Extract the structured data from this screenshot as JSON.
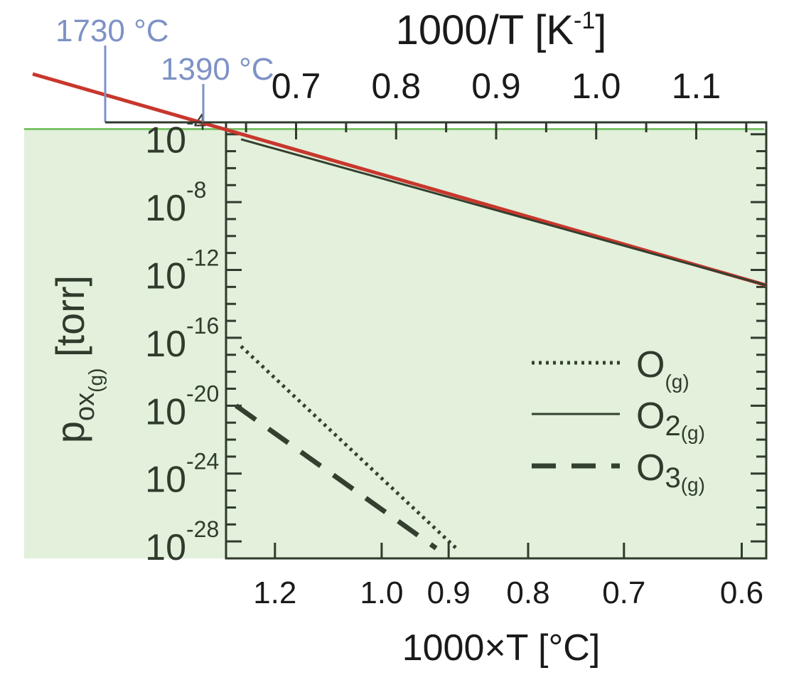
{
  "colors": {
    "axis": "#2f3b2c",
    "text": "#1a1a1a",
    "fill": "#e2f0dc",
    "fill_line": "#7cc36a",
    "o2_curve": "#c8372d",
    "o2_line": "#33402f",
    "marker": "#7e92c6"
  },
  "chart_data": {
    "type": "line",
    "top_axis": {
      "label_main": "1000/T [K",
      "label_sup": "-1",
      "label_close": "]",
      "ticks": [
        "0.7",
        "0.8",
        "0.9",
        "1.0",
        "1.1"
      ],
      "tick_values": [
        0.7,
        0.8,
        0.9,
        1.0,
        1.1
      ],
      "range": [
        0.63,
        1.17
      ]
    },
    "bottom_axis": {
      "label": "1000×T [°C]",
      "ticks": [
        "1.2",
        "1.0",
        "0.9",
        "0.8",
        "0.7",
        "0.6"
      ],
      "tick_values": [
        1.2,
        1.0,
        0.9,
        0.8,
        0.7,
        0.6
      ]
    },
    "y_axis": {
      "label_p": "p",
      "label_ox": "ox",
      "label_g": "(g)",
      "label_unit": " [torr]",
      "scale": "log",
      "range_exp": [
        -29,
        -3.3
      ],
      "ticks": [
        {
          "base": "10",
          "exp": "-4",
          "value": -4
        },
        {
          "base": "10",
          "exp": "-8",
          "value": -8
        },
        {
          "base": "10",
          "exp": "-12",
          "value": -12
        },
        {
          "base": "10",
          "exp": "-16",
          "value": -16
        },
        {
          "base": "10",
          "exp": "-20",
          "value": -20
        },
        {
          "base": "10",
          "exp": "-24",
          "value": -24
        },
        {
          "base": "10",
          "exp": "-28",
          "value": -28
        }
      ]
    },
    "series": [
      {
        "name": "O",
        "sub": "(g)",
        "style": "dotted",
        "x": [
          0.645,
          0.86
        ],
        "y": [
          -16.5,
          -28.4
        ]
      },
      {
        "name": "O",
        "num": "2",
        "sub": "(g)",
        "style": "solid",
        "x": [
          0.645,
          1.17
        ],
        "y": [
          -4.3,
          -12.9
        ]
      },
      {
        "name": "O",
        "num": "3",
        "sub": "(g)",
        "style": "dashed",
        "x": [
          0.64,
          0.84
        ],
        "y": [
          -20,
          -28.4
        ]
      }
    ],
    "extended_curve": {
      "x": [
        0.54,
        1.17
      ],
      "y": [
        -2.6,
        -12.9
      ]
    },
    "highlight_limit_y": -3.7,
    "markers": [
      {
        "label": "1730 °C",
        "x": 0.545
      },
      {
        "label": "1390 °C",
        "x": 0.6
      }
    ]
  }
}
